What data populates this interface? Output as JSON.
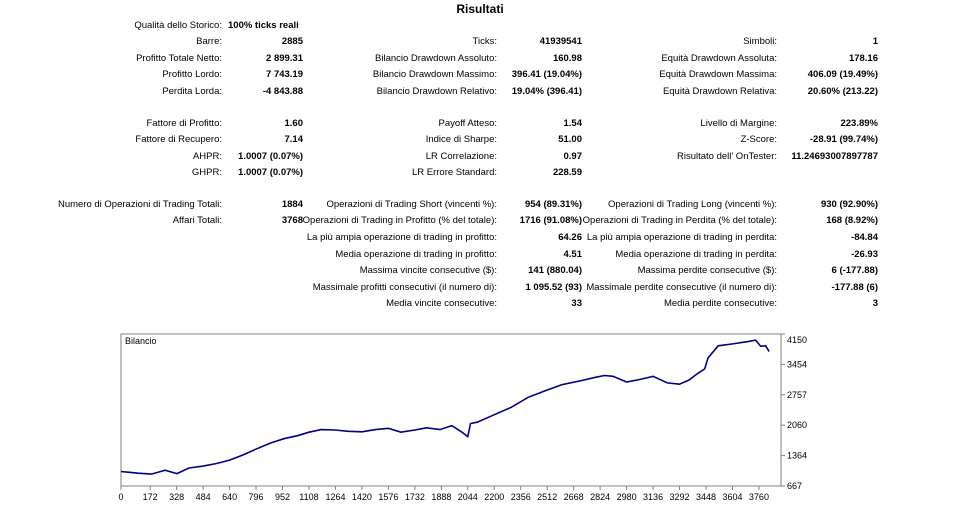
{
  "title": "Risultati",
  "quality": {
    "label": "Qualità dello Storico:",
    "value": "100% ticks reali"
  },
  "col1": [
    {
      "label": "Barre:",
      "value": "2885"
    },
    {
      "label": "Profitto Totale Netto:",
      "value": "2 899.31"
    },
    {
      "label": "Profitto Lordo:",
      "value": "7 743.19"
    },
    {
      "label": "Perdita Lorda:",
      "value": "-4 843.88"
    },
    {
      "label": "",
      "value": ""
    },
    {
      "label": "Fattore di Profitto:",
      "value": "1.60"
    },
    {
      "label": "Fattore di Recupero:",
      "value": "7.14"
    },
    {
      "label": "AHPR:",
      "value": "1.0007 (0.07%)"
    },
    {
      "label": "GHPR:",
      "value": "1.0007 (0.07%)"
    }
  ],
  "col2": [
    {
      "label": "Ticks:",
      "value": "41939541"
    },
    {
      "label": "Bilancio Drawdown Assoluto:",
      "value": "160.98"
    },
    {
      "label": "Bilancio Drawdown Massimo:",
      "value": "396.41 (19.04%)"
    },
    {
      "label": "Bilancio Drawdown Relativo:",
      "value": "19.04% (396.41)"
    },
    {
      "label": "",
      "value": ""
    },
    {
      "label": "Payoff Atteso:",
      "value": "1.54"
    },
    {
      "label": "Indice di Sharpe:",
      "value": "51.00"
    },
    {
      "label": "LR Correlazione:",
      "value": "0.97"
    },
    {
      "label": "LR Errore Standard:",
      "value": "228.59"
    }
  ],
  "col3": [
    {
      "label": "Simboli:",
      "value": "1"
    },
    {
      "label": "Equità Drawdown Assoluta:",
      "value": "178.16"
    },
    {
      "label": "Equità Drawdown Massima:",
      "value": "406.09 (19.49%)"
    },
    {
      "label": "Equità Drawdown Relativa:",
      "value": "20.60% (213.22)"
    },
    {
      "label": "",
      "value": ""
    },
    {
      "label": "Livello di Margine:",
      "value": "223.89%"
    },
    {
      "label": "Z-Score:",
      "value": "-28.91 (99.74%)"
    },
    {
      "label": "Risultato dell' OnTester:",
      "value": "11.24693007897787"
    },
    {
      "label": "",
      "value": ""
    }
  ],
  "trades_left": [
    {
      "label": "Numero di Operazioni di Trading Totali:",
      "value": "1884"
    },
    {
      "label": "Affari Totali:",
      "value": "3768"
    }
  ],
  "trades_mid": [
    {
      "label": "Operazioni di Trading Short (vincenti %):",
      "value": "954 (89.31%)"
    },
    {
      "label": "Operazioni di Trading in Profitto (% del totale):",
      "value": "1716 (91.08%)"
    },
    {
      "label": "La più ampia operazione di trading in profitto:",
      "value": "64.26"
    },
    {
      "label": "Media operazione di trading in profitto:",
      "value": "4.51"
    },
    {
      "label": "Massima vincite consecutive ($):",
      "value": "141 (880.04)"
    },
    {
      "label": "Massimale profitti consecutivi (il numero di):",
      "value": "1 095.52 (93)"
    },
    {
      "label": "Media vincite consecutive:",
      "value": "33"
    }
  ],
  "trades_right": [
    {
      "label": "Operazioni di Trading Long (vincenti %):",
      "value": "930 (92.90%)"
    },
    {
      "label": "Operazioni di Trading in Perdita (% del totale):",
      "value": "168 (8.92%)"
    },
    {
      "label": "La più ampia operazione di trading in perdita:",
      "value": "-84.84"
    },
    {
      "label": "Media operazione di trading in perdita:",
      "value": "-26.93"
    },
    {
      "label": "Massima perdite consecutive ($):",
      "value": "6 (-177.88)"
    },
    {
      "label": "Massimale perdite consecutive (il numero di):",
      "value": "-177.88 (6)"
    },
    {
      "label": "Media perdite consecutive:",
      "value": "3"
    }
  ],
  "chart_data": {
    "type": "line",
    "title": "Bilancio",
    "line_color": "#000080",
    "x_ticks": [
      "0",
      "172",
      "328",
      "484",
      "640",
      "796",
      "952",
      "1108",
      "1264",
      "1420",
      "1576",
      "1732",
      "1888",
      "2044",
      "2200",
      "2356",
      "2512",
      "2668",
      "2824",
      "2980",
      "3136",
      "3292",
      "3448",
      "3604",
      "3760"
    ],
    "y_ticks": [
      "4150",
      "3454",
      "2757",
      "2060",
      "1364",
      "667"
    ],
    "xlim": [
      0,
      3890
    ],
    "ylim": [
      667,
      4150
    ],
    "series": [
      {
        "x": [
          0,
          100,
          180,
          260,
          330,
          400,
          480,
          560,
          640,
          720,
          800,
          880,
          960,
          1040,
          1108,
          1180,
          1260,
          1340,
          1420,
          1500,
          1576,
          1650,
          1732,
          1800,
          1880,
          1950,
          2010,
          2044,
          2060,
          2100,
          2200,
          2300,
          2400,
          2500,
          2600,
          2700,
          2800,
          2850,
          2900,
          2980,
          3060,
          3136,
          3220,
          3292,
          3350,
          3400,
          3440,
          3460,
          3520,
          3600,
          3700,
          3740,
          3770,
          3800,
          3820
        ],
        "y": [
          1000,
          960,
          940,
          1030,
          950,
          1080,
          1120,
          1180,
          1260,
          1380,
          1520,
          1650,
          1750,
          1820,
          1900,
          1960,
          1950,
          1920,
          1910,
          1960,
          1990,
          1900,
          1950,
          2000,
          1960,
          2050,
          1900,
          1800,
          2100,
          2130,
          2300,
          2470,
          2700,
          2850,
          2990,
          3070,
          3160,
          3200,
          3180,
          3050,
          3110,
          3180,
          3030,
          3000,
          3100,
          3250,
          3350,
          3600,
          3880,
          3920,
          3980,
          4010,
          3870,
          3880,
          3750
        ]
      }
    ]
  }
}
